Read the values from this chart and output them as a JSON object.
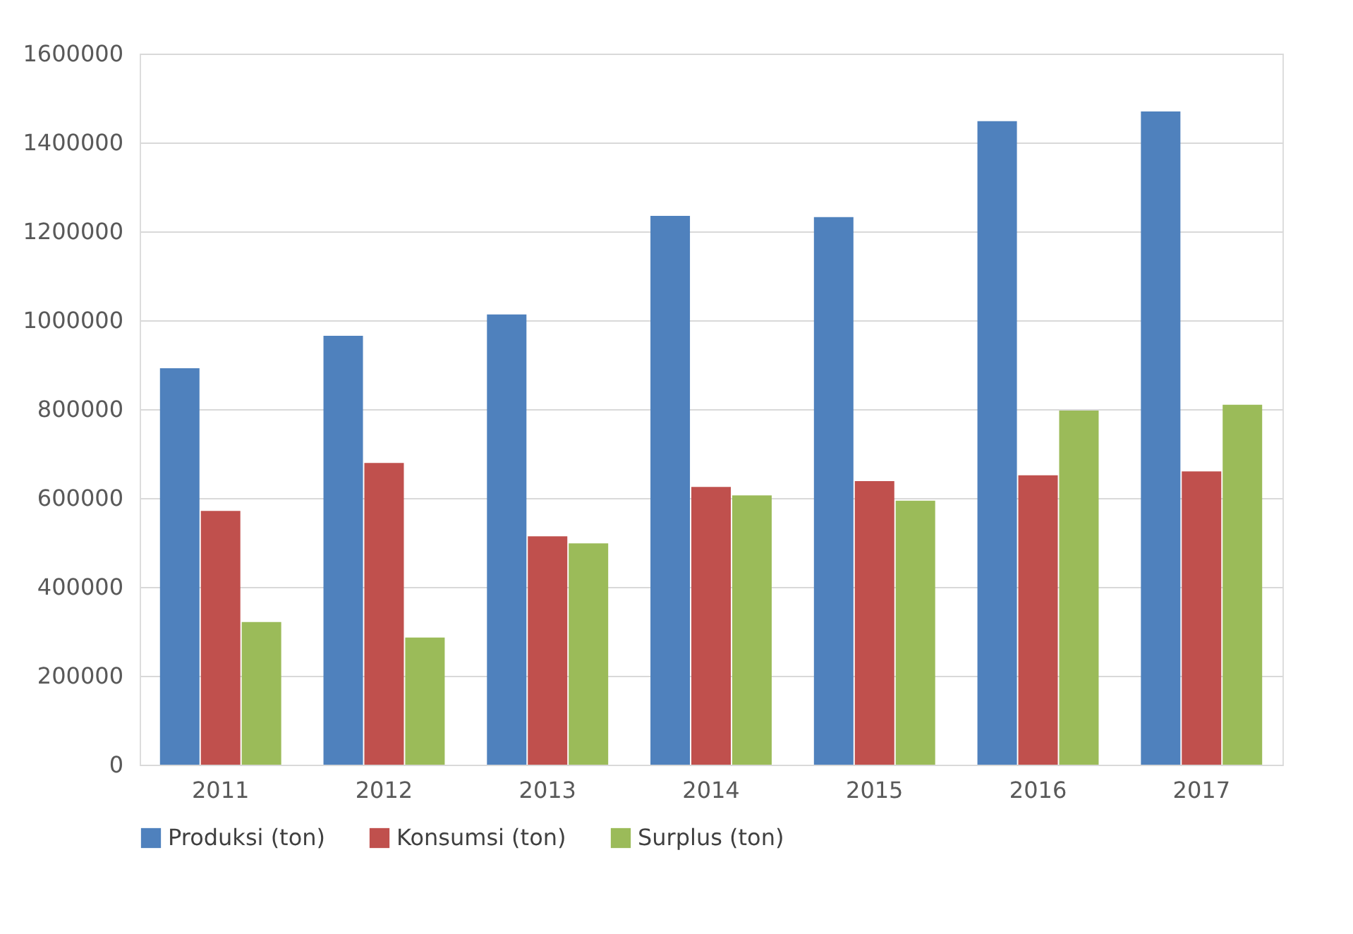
{
  "chart_data": {
    "type": "bar",
    "categories": [
      "2011",
      "2012",
      "2013",
      "2014",
      "2015",
      "2016",
      "2017"
    ],
    "series": [
      {
        "name": "Produksi (ton)",
        "color": "#4f81bd",
        "values": [
          892000,
          965000,
          1013000,
          1235000,
          1232000,
          1448000,
          1470000
        ]
      },
      {
        "name": "Konsumsi (ton)",
        "color": "#c0504d",
        "values": [
          571000,
          679000,
          514000,
          625000,
          638000,
          651000,
          660000
        ]
      },
      {
        "name": "Surplus (ton)",
        "color": "#9bbb59",
        "values": [
          321000,
          286000,
          498000,
          606000,
          594000,
          797000,
          810000
        ]
      }
    ],
    "ylim": [
      0,
      1600000
    ],
    "yticks": [
      0,
      200000,
      400000,
      600000,
      800000,
      1000000,
      1200000,
      1400000,
      1600000
    ],
    "grid": "y",
    "legend": "bottom"
  }
}
